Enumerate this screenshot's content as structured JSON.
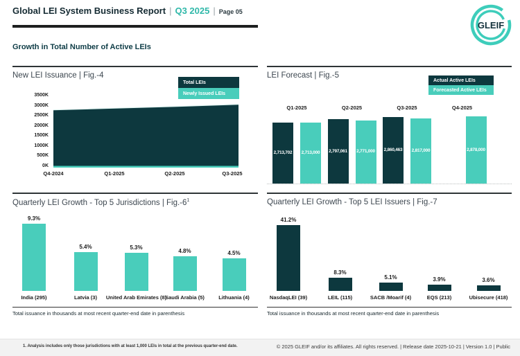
{
  "header": {
    "title": "Global LEI System Business Report",
    "separator": "|",
    "period": "Q3 2025",
    "page_label": "Page 05",
    "logo_text": "GLEIF"
  },
  "section_title": "Growth in Total Number of Active LEIs",
  "colors": {
    "dark_teal": "#0d383e",
    "teal": "#49cdbb",
    "accent_text": "#2fb8a9",
    "footer_band": "#f2f2f2"
  },
  "chart_data": [
    {
      "id": "fig4",
      "type": "area",
      "title": "New LEI Issuance | Fig.-4",
      "legend": [
        {
          "label": "Total LEIs",
          "color": "#0d383e"
        },
        {
          "label": "Newly Issued LEIs",
          "color": "#49cdbb"
        }
      ],
      "x": [
        "Q4-2024",
        "Q1-2025",
        "Q2-2025",
        "Q3-2025"
      ],
      "series": [
        {
          "name": "Total LEIs",
          "values": [
            2800000,
            2885000,
            2970000,
            3070000
          ]
        },
        {
          "name": "Newly Issued LEIs",
          "values": [
            80000,
            80000,
            80000,
            80000
          ]
        }
      ],
      "y_ticks": [
        "3500K",
        "3000K",
        "2500K",
        "2000K",
        "1500K",
        "1000K",
        "500K",
        "0K"
      ],
      "ylim": [
        0,
        3500000
      ],
      "grid": false,
      "legend_position": "top-right"
    },
    {
      "id": "fig5",
      "type": "bar",
      "title": "LEI Forecast | Fig.-5",
      "legend": [
        {
          "label": "Actual Active LEIs",
          "color": "#0d383e"
        },
        {
          "label": "Forecasted Active LEIs",
          "color": "#49cdbb"
        }
      ],
      "categories": [
        "Q1-2025",
        "Q2-2025",
        "Q3-2025",
        "Q4-2025"
      ],
      "series": [
        {
          "name": "Actual Active LEIs",
          "values": [
            2713702,
            2797061,
            2860463,
            null
          ],
          "labels": [
            "2,713,702",
            "2,797,061",
            "2,860,463",
            null
          ]
        },
        {
          "name": "Forecasted Active LEIs",
          "values": [
            2713000,
            2771000,
            2817000,
            2878000
          ],
          "labels": [
            "2,713,000",
            "2,771,000",
            "2,817,000",
            "2,878,000"
          ]
        }
      ],
      "legend_position": "top-right"
    },
    {
      "id": "fig6",
      "type": "bar",
      "title": "Quarterly LEI Growth - Top 5 Jurisdictions | Fig.-6",
      "title_superscript": "1",
      "categories": [
        "India (295)",
        "Latvia (3)",
        "United Arab Emirates (8)",
        "Saudi Arabia (5)",
        "Lithuania (4)"
      ],
      "values": [
        9.3,
        5.4,
        5.3,
        4.8,
        4.5
      ],
      "value_labels": [
        "9.3%",
        "5.4%",
        "5.3%",
        "4.8%",
        "4.5%"
      ],
      "bar_color": "#49cdbb",
      "note": "Total issuance in thousands at most recent quarter-end date in parenthesis"
    },
    {
      "id": "fig7",
      "type": "bar",
      "title": "Quarterly LEI Growth - Top 5 LEI Issuers | Fig.-7",
      "categories": [
        "NasdaqLEI (39)",
        "LEIL (115)",
        "SACB /Moarif (4)",
        "EQS (213)",
        "Ubisecure (418)"
      ],
      "values": [
        41.2,
        8.3,
        5.1,
        3.9,
        3.6
      ],
      "value_labels": [
        "41.2%",
        "8.3%",
        "5.1%",
        "3.9%",
        "3.6%"
      ],
      "bar_color": "#0d383e",
      "note": "Total issuance in thousands at most recent quarter-end date in parenthesis"
    }
  ],
  "footer": {
    "footnote": "1. Analysis includes only those jurisdictions with at least 1,000 LEIs in total at the previous quarter-end date.",
    "copyright": "© 2025 GLEIF and/or its affiliates. All rights reserved. | Release date 2025-10-21 | Version 1.0 | Public"
  }
}
